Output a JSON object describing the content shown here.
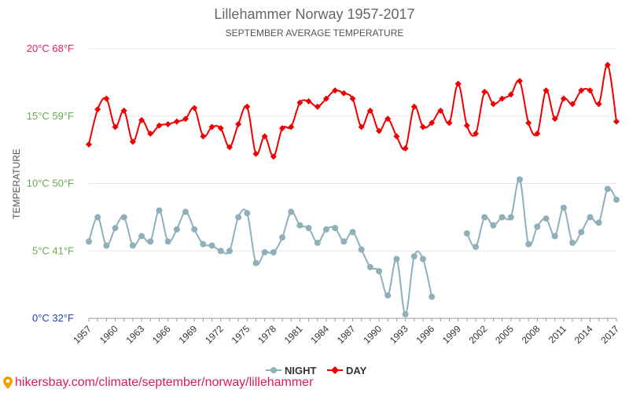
{
  "chart_data": {
    "type": "line",
    "title": "Lillehammer Norway 1957-2017",
    "subtitle": "SEPTEMBER AVERAGE TEMPERATURE",
    "ylabel": "TEMPERATURE",
    "ylim": [
      0,
      20
    ],
    "xlim": [
      1957,
      2017
    ],
    "y_ticks": [
      {
        "value": 0,
        "label": "0°C 32°F",
        "color": "#1f3fbf"
      },
      {
        "value": 5,
        "label": "5°C 41°F",
        "color": "#6aa84f"
      },
      {
        "value": 10,
        "label": "10°C 50°F",
        "color": "#6aa84f"
      },
      {
        "value": 15,
        "label": "15°C 59°F",
        "color": "#6aa84f"
      },
      {
        "value": 20,
        "label": "20°C 68°F",
        "color": "#e0245e"
      }
    ],
    "x_ticks": [
      "1957",
      "1960",
      "1963",
      "1966",
      "1969",
      "1972",
      "1975",
      "1978",
      "1981",
      "1984",
      "1987",
      "1990",
      "1993",
      "1996",
      "1999",
      "2002",
      "2005",
      "2008",
      "2011",
      "2014",
      "2017"
    ],
    "legend_position": "bottom-center",
    "grid": true,
    "series": [
      {
        "name": "NIGHT",
        "color": "#8fb0ba",
        "marker": "circle",
        "x": [
          1957,
          1958,
          1959,
          1960,
          1961,
          1962,
          1963,
          1964,
          1965,
          1966,
          1967,
          1968,
          1969,
          1970,
          1971,
          1972,
          1973,
          1974,
          1975,
          1976,
          1977,
          1978,
          1979,
          1980,
          1981,
          1982,
          1983,
          1984,
          1985,
          1986,
          1987,
          1988,
          1989,
          1990,
          1991,
          1992,
          1993,
          1994,
          1995,
          1996,
          2000,
          2001,
          2002,
          2003,
          2004,
          2005,
          2006,
          2007,
          2008,
          2009,
          2010,
          2011,
          2012,
          2013,
          2014,
          2015,
          2016,
          2017
        ],
        "values": [
          5.7,
          7.5,
          5.4,
          6.7,
          7.5,
          5.4,
          6.1,
          5.7,
          8.0,
          5.7,
          6.6,
          7.9,
          6.6,
          5.5,
          5.4,
          5.0,
          5.0,
          7.5,
          7.8,
          4.1,
          4.9,
          4.9,
          6.0,
          7.9,
          6.9,
          6.7,
          5.6,
          6.6,
          6.7,
          5.7,
          6.4,
          5.1,
          3.8,
          3.5,
          1.7,
          4.4,
          0.3,
          4.6,
          4.4,
          1.6,
          6.3,
          5.3,
          7.5,
          6.9,
          7.5,
          7.5,
          10.3,
          5.5,
          6.8,
          7.4,
          6.1,
          8.2,
          5.6,
          6.4,
          7.5,
          7.1,
          9.6,
          8.8
        ]
      },
      {
        "name": "DAY",
        "color": "#ee0000",
        "marker": "diamond",
        "x": [
          1957,
          1958,
          1959,
          1960,
          1961,
          1962,
          1963,
          1964,
          1965,
          1966,
          1967,
          1968,
          1969,
          1970,
          1971,
          1972,
          1973,
          1974,
          1975,
          1976,
          1977,
          1978,
          1979,
          1980,
          1981,
          1982,
          1983,
          1984,
          1985,
          1986,
          1987,
          1988,
          1989,
          1990,
          1991,
          1992,
          1993,
          1994,
          1995,
          1996,
          1997,
          1998,
          1999,
          2000,
          2001,
          2002,
          2003,
          2004,
          2005,
          2006,
          2007,
          2008,
          2009,
          2010,
          2011,
          2012,
          2013,
          2014,
          2015,
          2016,
          2017
        ],
        "values": [
          12.9,
          15.5,
          16.3,
          14.2,
          15.4,
          13.1,
          14.7,
          13.7,
          14.3,
          14.4,
          14.6,
          14.8,
          15.6,
          13.5,
          14.2,
          14.1,
          12.7,
          14.4,
          15.7,
          12.2,
          13.5,
          12.0,
          14.1,
          14.2,
          16.0,
          16.1,
          15.7,
          16.3,
          16.9,
          16.7,
          16.3,
          14.2,
          15.4,
          13.9,
          14.8,
          13.5,
          12.6,
          15.7,
          14.2,
          14.5,
          15.4,
          14.5,
          17.4,
          14.3,
          13.7,
          16.8,
          15.9,
          16.3,
          16.6,
          17.6,
          14.5,
          13.7,
          16.9,
          14.8,
          16.3,
          15.9,
          16.9,
          16.9,
          15.9,
          18.8,
          14.6
        ]
      }
    ]
  },
  "footer": {
    "pin_icon": "location-pin-icon",
    "url": "hikersbay.com/climate/september/norway/lillehammer"
  }
}
